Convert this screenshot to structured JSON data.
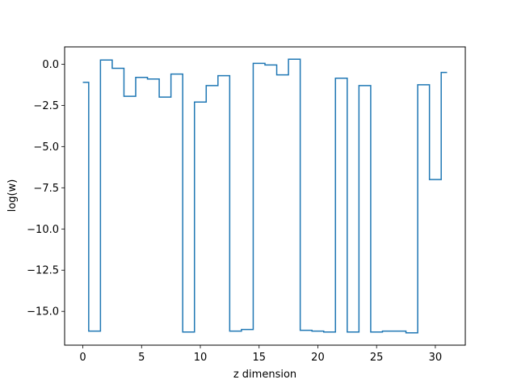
{
  "chart_data": {
    "type": "line",
    "drawstyle": "steps-mid",
    "title": "",
    "xlabel": "z dimension",
    "ylabel": "log(w)",
    "xlim": [
      -1.55,
      32.55
    ],
    "ylim": [
      -17.05,
      1.05
    ],
    "xticks": [
      0,
      5,
      10,
      15,
      20,
      25,
      30
    ],
    "xtick_labels": [
      "0",
      "5",
      "10",
      "15",
      "20",
      "25",
      "30"
    ],
    "yticks": [
      0.0,
      -2.5,
      -5.0,
      -7.5,
      -10.0,
      -12.5,
      -15.0
    ],
    "ytick_labels": [
      "0.0",
      "−2.5",
      "−5.0",
      "−7.5",
      "−10.0",
      "−12.5",
      "−15.0"
    ],
    "grid": false,
    "line_color": "#1f77b4",
    "series": [
      {
        "x": [
          0,
          1,
          2,
          3,
          4,
          5,
          6,
          7,
          8,
          9,
          10,
          11,
          12,
          13,
          14,
          15,
          16,
          17,
          18,
          19,
          20,
          21,
          22,
          23,
          24,
          25,
          26,
          27,
          28,
          29,
          30,
          31
        ],
        "values": [
          -1.1,
          -16.2,
          0.25,
          -0.25,
          -1.95,
          -0.8,
          -0.9,
          -2.0,
          -0.6,
          -16.25,
          -2.3,
          -1.3,
          -0.7,
          -16.2,
          -16.1,
          0.05,
          -0.05,
          -0.65,
          0.3,
          -16.15,
          -16.2,
          -16.25,
          -0.85,
          -16.25,
          -1.3,
          -16.25,
          -16.2,
          -16.2,
          -16.3,
          -1.25,
          -7.0,
          -0.5
        ]
      }
    ]
  }
}
